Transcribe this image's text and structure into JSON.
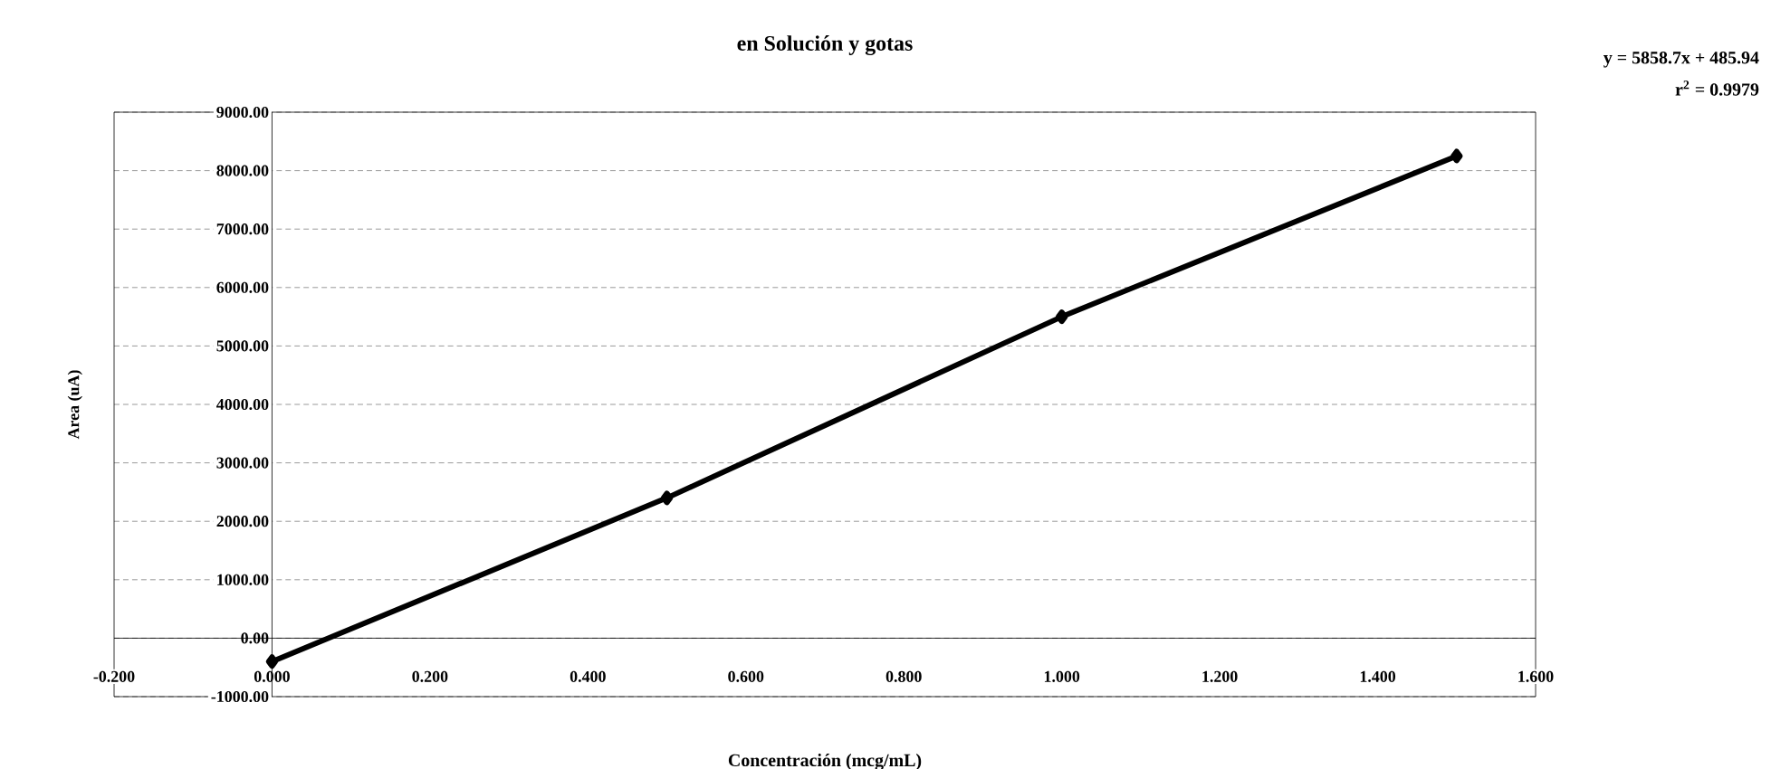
{
  "chart_data": {
    "type": "line",
    "title": "en Solución y gotas",
    "xlabel": "Concentración (mcg/mL)",
    "ylabel": "Area (uA)",
    "x": [
      0,
      0.5,
      1.0,
      1.5
    ],
    "series": [
      {
        "color": "#000000",
        "values": [
          -400,
          2400,
          5500,
          8250
        ]
      }
    ],
    "xlim": [
      -0.2,
      1.6
    ],
    "ylim": [
      -1000,
      9000
    ],
    "xticks": [
      {
        "value": -0.2,
        "label": "-0.200"
      },
      {
        "value": 0,
        "label": "0.000"
      },
      {
        "value": 0.2,
        "label": "0.200"
      },
      {
        "value": 0.4,
        "label": "0.400"
      },
      {
        "value": 0.6,
        "label": "0.600"
      },
      {
        "value": 0.8,
        "label": "0.800"
      },
      {
        "value": 1.0,
        "label": "1.000"
      },
      {
        "value": 1.2,
        "label": "1.200"
      },
      {
        "value": 1.4,
        "label": "1.400"
      },
      {
        "value": 1.6,
        "label": "1.600"
      }
    ],
    "yticks": [
      {
        "value": -1000,
        "label": "-1000.00"
      },
      {
        "value": 0,
        "label": "0.00"
      },
      {
        "value": 1000,
        "label": "1000.00"
      },
      {
        "value": 2000,
        "label": "2000.00"
      },
      {
        "value": 3000,
        "label": "3000.00"
      },
      {
        "value": 4000,
        "label": "4000.00"
      },
      {
        "value": 5000,
        "label": "5000.00"
      },
      {
        "value": 6000,
        "label": "6000.00"
      },
      {
        "value": 7000,
        "label": "7000.00"
      },
      {
        "value": 8000,
        "label": "8000.00"
      },
      {
        "value": 9000,
        "label": "9000.00"
      }
    ],
    "annotations": [
      "y = 5858.7x + 485.94",
      "r$^{2}$ = 0.9979"
    ],
    "grid": "y",
    "marker": "diamond",
    "line_style": "solid"
  }
}
